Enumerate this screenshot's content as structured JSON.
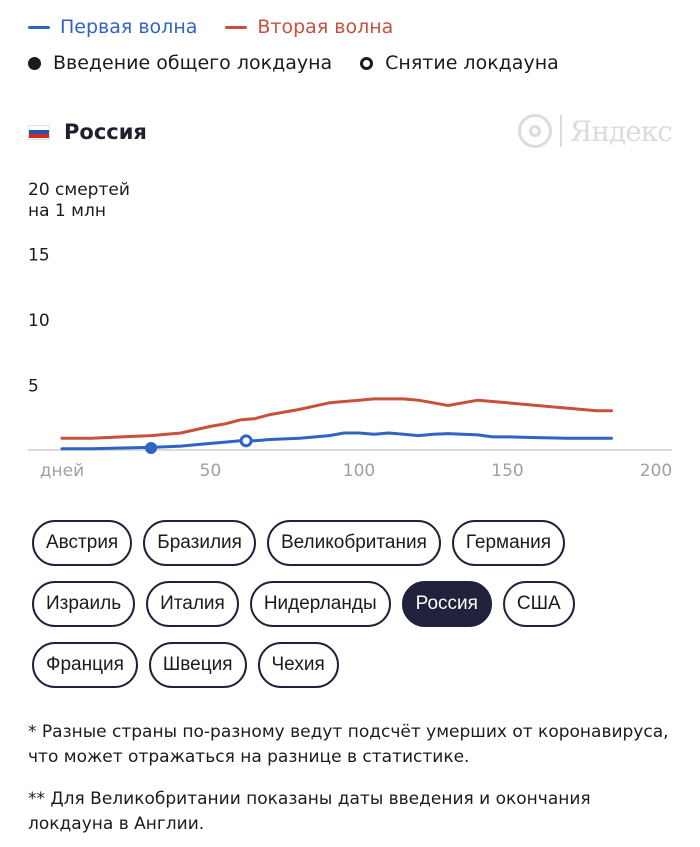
{
  "legend": {
    "wave1": {
      "label": "Первая волна",
      "color": "#2f64c4"
    },
    "wave2": {
      "label": "Вторая волна",
      "color": "#c8503c"
    },
    "lockdown_start": {
      "label": "Введение общего локдауна"
    },
    "lockdown_end": {
      "label": "Снятие локдауна"
    }
  },
  "country": {
    "title": "Россия",
    "flag_colors": [
      "#ffffff",
      "#2654a8",
      "#d52b1e"
    ]
  },
  "logo": {
    "text": "Яндекс",
    "color": "#dcdcdc"
  },
  "chart_data": {
    "type": "line",
    "xlabel": "",
    "ylabel": "",
    "xlim": [
      0,
      200
    ],
    "ylim": [
      0,
      20
    ],
    "x_ticks": [
      {
        "value": 0,
        "label": "дней"
      },
      {
        "value": 50,
        "label": "50"
      },
      {
        "value": 100,
        "label": "100"
      },
      {
        "value": 150,
        "label": "150"
      },
      {
        "value": 200,
        "label": "200"
      }
    ],
    "y_ticks": [
      {
        "value": 5,
        "label": "5"
      },
      {
        "value": 10,
        "label": "10"
      },
      {
        "value": 15,
        "label": "15"
      },
      {
        "value": 20,
        "label": "20 смертей",
        "label2": "на 1 млн"
      }
    ],
    "grid": false,
    "series": [
      {
        "name": "Первая волна",
        "color": "#2f64c4",
        "x": [
          0,
          10,
          20,
          30,
          40,
          50,
          55,
          60,
          65,
          70,
          80,
          90,
          95,
          100,
          105,
          110,
          115,
          120,
          125,
          130,
          135,
          140,
          145,
          150,
          160,
          170,
          180,
          185
        ],
        "y": [
          0.1,
          0.1,
          0.15,
          0.2,
          0.3,
          0.5,
          0.6,
          0.7,
          0.7,
          0.8,
          0.9,
          1.1,
          1.3,
          1.3,
          1.2,
          1.3,
          1.2,
          1.1,
          1.2,
          1.25,
          1.2,
          1.15,
          1.0,
          1.0,
          0.95,
          0.9,
          0.9,
          0.9
        ]
      },
      {
        "name": "Вторая волна",
        "color": "#c8503c",
        "x": [
          0,
          10,
          20,
          30,
          40,
          50,
          55,
          60,
          65,
          70,
          80,
          90,
          95,
          100,
          105,
          110,
          115,
          120,
          125,
          130,
          135,
          140,
          145,
          150,
          160,
          170,
          180,
          185
        ],
        "y": [
          0.9,
          0.9,
          1.0,
          1.1,
          1.3,
          1.8,
          2.0,
          2.3,
          2.4,
          2.7,
          3.1,
          3.6,
          3.7,
          3.8,
          3.9,
          3.9,
          3.9,
          3.8,
          3.6,
          3.4,
          3.6,
          3.8,
          3.7,
          3.6,
          3.4,
          3.2,
          3.0,
          3.0
        ]
      }
    ],
    "markers": [
      {
        "type": "lockdown_start",
        "x": 30,
        "y": 0.15
      },
      {
        "type": "lockdown_end",
        "x": 62,
        "y": 0.7
      }
    ]
  },
  "countries": [
    {
      "label": "Австрия",
      "active": false
    },
    {
      "label": "Бразилия",
      "active": false
    },
    {
      "label": "Великобритания",
      "active": false
    },
    {
      "label": "Германия",
      "active": false
    },
    {
      "label": "Израиль",
      "active": false
    },
    {
      "label": "Италия",
      "active": false
    },
    {
      "label": "Нидерланды",
      "active": false
    },
    {
      "label": "Россия",
      "active": true
    },
    {
      "label": "США",
      "active": false
    },
    {
      "label": "Франция",
      "active": false
    },
    {
      "label": "Швеция",
      "active": false
    },
    {
      "label": "Чехия",
      "active": false
    }
  ],
  "notes": [
    "* Разные страны по-разному ведут подсчёт умерших от коронавируса, что может отражаться на разнице в статистике.",
    "** Для Великобритании показаны даты введения и окончания локдауна в Англии."
  ]
}
